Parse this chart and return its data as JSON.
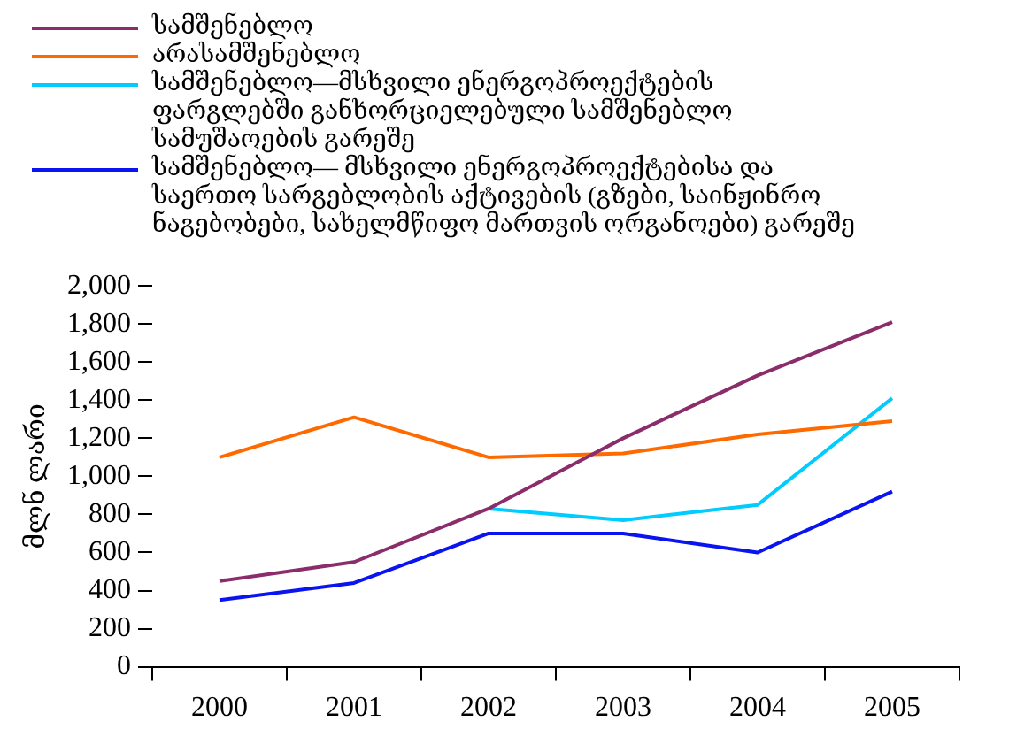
{
  "chart_data": {
    "type": "line",
    "ylabel": "მლნ ლარი",
    "categories": [
      "2000",
      "2001",
      "2002",
      "2003",
      "2004",
      "2005"
    ],
    "series": [
      {
        "name": "სამშენებლო",
        "color": "#8b2c6b",
        "values": [
          450,
          550,
          830,
          1200,
          1530,
          1810
        ]
      },
      {
        "name": "არასამშენებლო",
        "color": "#ff6a00",
        "values": [
          1100,
          1310,
          1100,
          1120,
          1220,
          1290
        ]
      },
      {
        "name": "სამშენებლო—მსხვილი ენერგოპროექტების ფარგლებში განხორციელებული სამშენებლო სამუშაოების გარეშე",
        "color": "#00ccff",
        "values": [
          null,
          null,
          830,
          770,
          850,
          1410
        ]
      },
      {
        "name": "სამშენებლო— მსხვილი ენერგოპროექტებისა და საერთო სარგებლობის აქტივების (გზები, საინჟინრო ნაგებობები, სახელმწიფო მართვის ორგანოები) გარეშე",
        "color": "#0a14f0",
        "values": [
          350,
          440,
          700,
          700,
          600,
          920
        ]
      }
    ],
    "ylim": [
      0,
      2000
    ],
    "yticks": [
      {
        "value": 0,
        "label": "0"
      },
      {
        "value": 200,
        "label": "200"
      },
      {
        "value": 400,
        "label": "400"
      },
      {
        "value": 600,
        "label": "600"
      },
      {
        "value": 800,
        "label": "800"
      },
      {
        "value": 1000,
        "label": "1,000"
      },
      {
        "value": 1200,
        "label": "1,200"
      },
      {
        "value": 1400,
        "label": "1,400"
      },
      {
        "value": 1600,
        "label": "1,600"
      },
      {
        "value": 1800,
        "label": "1,800"
      },
      {
        "value": 2000,
        "label": "2,000"
      }
    ],
    "grid": false,
    "legend": "top left",
    "marker": "none",
    "line_style": "solid"
  }
}
